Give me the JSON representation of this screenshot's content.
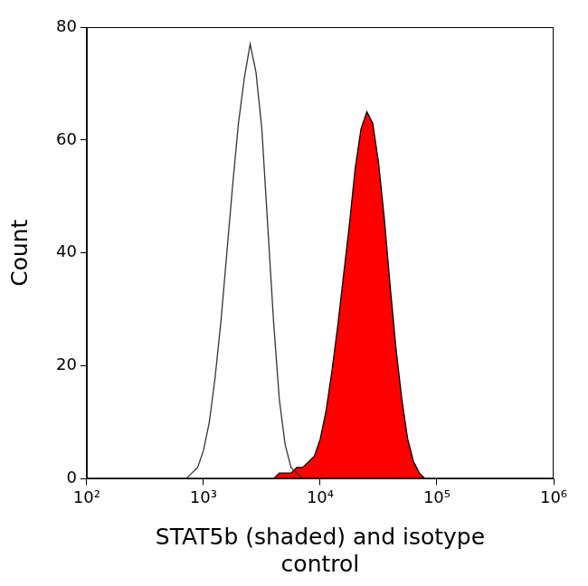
{
  "chart_data": {
    "type": "line",
    "x_label": [
      "STAT5b (shaded) and isotype",
      "control"
    ],
    "y_label": "Count",
    "log": "x",
    "grid": false,
    "xlim": [
      100,
      1000000
    ],
    "xticks": [
      {
        "value": 100,
        "label": "10²"
      },
      {
        "value": 1000,
        "label": "10³"
      },
      {
        "value": 10000,
        "label": "10⁴"
      },
      {
        "value": 100000,
        "label": "10⁵"
      },
      {
        "value": 1000000,
        "label": "10⁶"
      }
    ],
    "ylim": [
      0,
      80
    ],
    "yticks": [
      0,
      20,
      40,
      60,
      80
    ],
    "x": [
      100,
      631,
      708,
      794,
      891,
      1000,
      1122,
      1259,
      1413,
      1585,
      1778,
      1995,
      2239,
      2512,
      2818,
      3162,
      3548,
      3981,
      4467,
      5012,
      5623,
      6310,
      7079,
      7943,
      8913,
      10000,
      11220,
      12589,
      14125,
      15849,
      17783,
      19953,
      22387,
      25119,
      28184,
      31623,
      35481,
      39811,
      44668,
      50119,
      56234,
      63096,
      70795,
      79433,
      89125,
      100000,
      1000000
    ],
    "series": [
      {
        "name": "isotype control",
        "type": "line",
        "color": "#333333",
        "values": [
          0,
          0,
          0,
          1,
          2,
          5,
          10,
          18,
          28,
          40,
          52,
          63,
          71,
          77,
          72,
          62,
          45,
          28,
          14,
          6,
          2,
          1,
          0,
          0,
          0,
          0,
          0,
          0,
          0,
          0,
          0,
          0,
          0,
          0,
          0,
          0,
          0,
          0,
          0,
          0,
          0,
          0,
          0,
          0,
          0,
          0,
          0
        ]
      },
      {
        "name": "STAT5b",
        "type": "area",
        "color": "#ff0000",
        "values": [
          0,
          0,
          0,
          0,
          0,
          0,
          0,
          0,
          0,
          0,
          0,
          0,
          0,
          0,
          0,
          0,
          0,
          0,
          1,
          1,
          1,
          2,
          2,
          3,
          4,
          7,
          12,
          19,
          27,
          36,
          45,
          55,
          62,
          65,
          63,
          56,
          46,
          34,
          23,
          14,
          7,
          3,
          1,
          0,
          0,
          0,
          0
        ]
      }
    ]
  }
}
